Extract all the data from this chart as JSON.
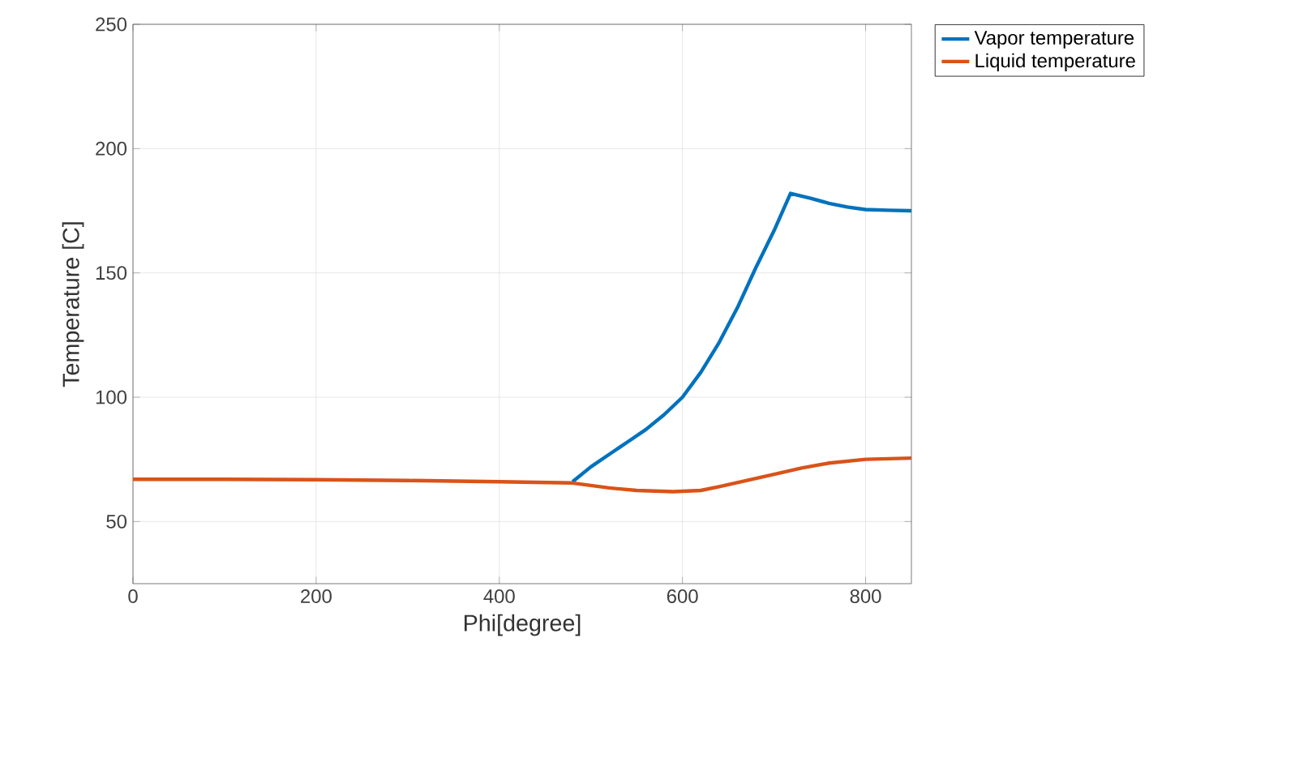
{
  "chart_data": {
    "type": "line",
    "xlabel": "Phi[degree]",
    "ylabel": "Temperature [C]",
    "xlim": [
      0,
      850
    ],
    "ylim": [
      25,
      250
    ],
    "xticks": [
      0,
      200,
      400,
      600,
      800
    ],
    "yticks": [
      50,
      100,
      150,
      200,
      250
    ],
    "grid": true,
    "legend": "top right",
    "marker": "none",
    "line_style": "solid",
    "series": [
      {
        "name": "Vapor temperature",
        "color": "#0072bd",
        "x": [
          480,
          500,
          520,
          540,
          560,
          580,
          600,
          620,
          640,
          660,
          680,
          700,
          718,
          740,
          760,
          780,
          800,
          825,
          850
        ],
        "values": [
          66,
          72,
          77,
          82,
          87,
          93,
          100,
          110,
          122,
          136,
          152,
          167,
          182,
          180,
          178,
          176.5,
          175.5,
          175.2,
          175
        ]
      },
      {
        "name": "Liquid temperature",
        "color": "#d95319",
        "x": [
          0,
          100,
          200,
          300,
          400,
          480,
          500,
          520,
          550,
          590,
          620,
          640,
          670,
          700,
          730,
          760,
          800,
          850
        ],
        "values": [
          67,
          67,
          66.8,
          66.5,
          66,
          65.5,
          64.5,
          63.5,
          62.5,
          62,
          62.5,
          64,
          66.5,
          69,
          71.5,
          73.5,
          75,
          75.5
        ]
      }
    ]
  }
}
